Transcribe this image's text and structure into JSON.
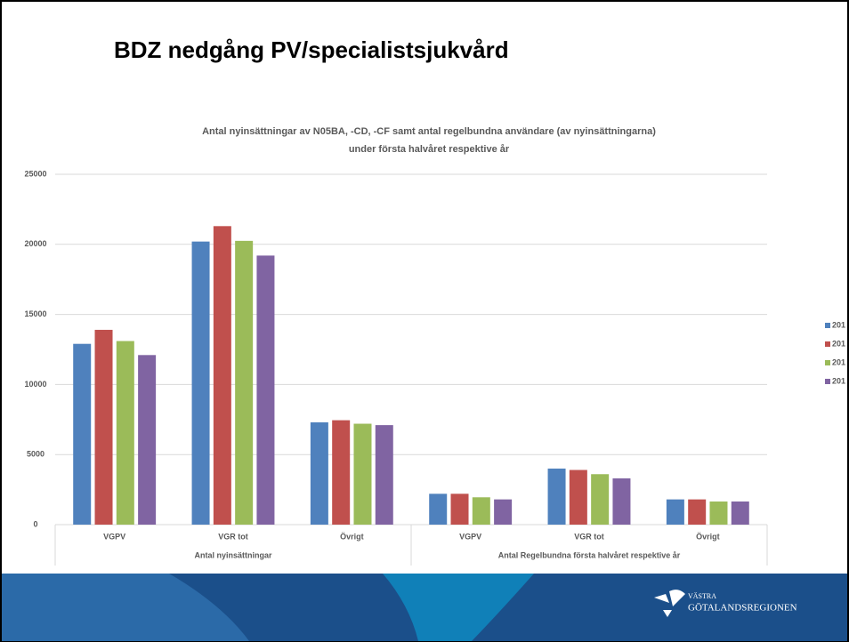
{
  "slide_title": "BDZ nedgång PV/specialistsjukvård",
  "logo": {
    "line1": "VÄSTRA",
    "line2": "GÖTALANDSREGIONEN"
  },
  "chart_data": {
    "type": "bar",
    "title": [
      "Antal nyinsättningar av N05BA, -CD, -CF samt antal regelbundna användare (av nyinsättningarna)",
      "under första halvåret respektive år"
    ],
    "categories": [
      "VGPV",
      "VGR tot",
      "Övrigt",
      "VGPV",
      "VGR tot",
      "Övrigt"
    ],
    "category_groups": [
      "Antal nyinsättningar",
      "Antal Regelbundna första halvåret respektive år"
    ],
    "series": [
      {
        "name": "201",
        "color": "#4f81bd",
        "values": [
          12900,
          20200,
          7300,
          2200,
          4000,
          1800
        ]
      },
      {
        "name": "201",
        "color": "#c0504d",
        "values": [
          13900,
          21300,
          7450,
          2200,
          3900,
          1800
        ]
      },
      {
        "name": "201",
        "color": "#9bbb59",
        "values": [
          13100,
          20250,
          7200,
          1950,
          3600,
          1650
        ]
      },
      {
        "name": "201",
        "color": "#8064a2",
        "values": [
          12100,
          19200,
          7100,
          1800,
          3300,
          1650
        ]
      }
    ],
    "ylim": [
      0,
      25000
    ],
    "yticks": [
      0,
      5000,
      10000,
      15000,
      20000,
      25000
    ],
    "grid": true,
    "legend": "right"
  }
}
